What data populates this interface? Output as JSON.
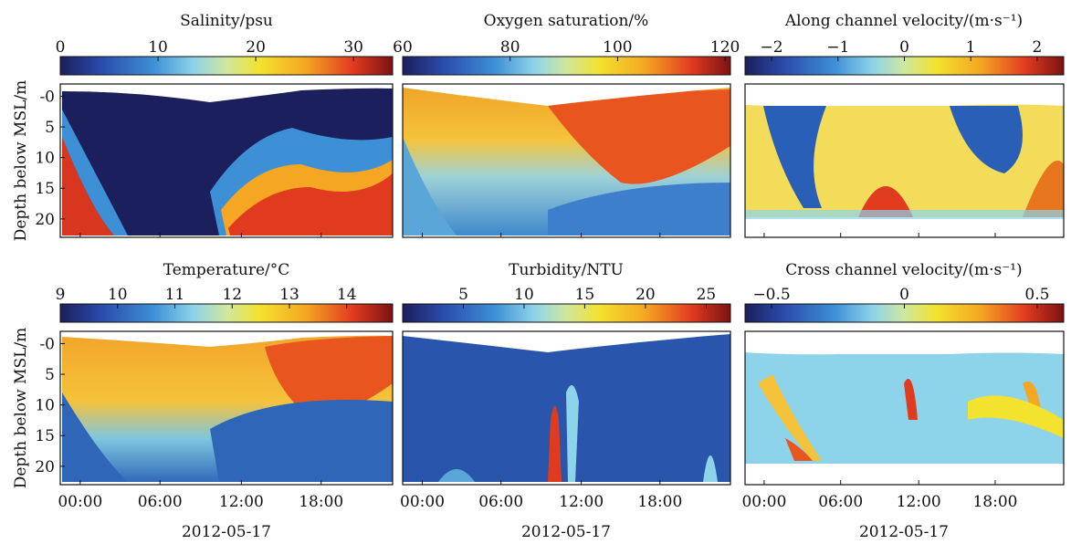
{
  "chart_data": [
    {
      "type": "heatmap",
      "title": "Salinity/psu",
      "ylabel": "Depth below MSL/m",
      "yticks": [
        "-0",
        "5",
        "10",
        "15",
        "20"
      ],
      "xticks": [
        "00:00",
        "06:00",
        "12:00",
        "18:00"
      ],
      "colorbar": {
        "ticks": [
          "0",
          "10",
          "20",
          "30"
        ],
        "tick_values": [
          0,
          10,
          20,
          30
        ],
        "range": [
          0,
          34
        ]
      }
    },
    {
      "type": "heatmap",
      "title": "Oxygen saturation/%",
      "xticks": [
        "00:00",
        "06:00",
        "12:00",
        "18:00"
      ],
      "colorbar": {
        "ticks": [
          "60",
          "80",
          "100",
          "120"
        ],
        "tick_values": [
          60,
          80,
          100,
          120
        ],
        "range": [
          60,
          121
        ]
      }
    },
    {
      "type": "heatmap",
      "title": "Along channel velocity/(m·s⁻¹)",
      "xticks": [
        "00:00",
        "06:00",
        "12:00",
        "18:00"
      ],
      "colorbar": {
        "ticks": [
          "−2",
          "−1",
          "0",
          "1",
          "2"
        ],
        "tick_values": [
          -2,
          -1,
          0,
          1,
          2
        ],
        "range": [
          -2.4,
          2.4
        ]
      }
    },
    {
      "type": "heatmap",
      "title": "Temperature/°C",
      "ylabel": "Depth below MSL/m",
      "yticks": [
        "-0",
        "5",
        "10",
        "15",
        "20"
      ],
      "xticks": [
        "00:00",
        "06:00",
        "12:00",
        "18:00"
      ],
      "xlabel": "2012-05-17",
      "colorbar": {
        "ticks": [
          "9",
          "10",
          "11",
          "12",
          "13",
          "14"
        ],
        "tick_values": [
          9,
          10,
          11,
          12,
          13,
          14
        ],
        "range": [
          9,
          14.8
        ]
      }
    },
    {
      "type": "heatmap",
      "title": "Turbidity/NTU",
      "xticks": [
        "00:00",
        "06:00",
        "12:00",
        "18:00"
      ],
      "xlabel": "2012-05-17",
      "colorbar": {
        "ticks": [
          "5",
          "10",
          "15",
          "20",
          "25"
        ],
        "tick_values": [
          5,
          10,
          15,
          20,
          25
        ],
        "range": [
          0,
          27
        ]
      }
    },
    {
      "type": "heatmap",
      "title": "Cross channel velocity/(m·s⁻¹)",
      "xticks": [
        "00:00",
        "06:00",
        "12:00",
        "18:00"
      ],
      "xlabel": "2012-05-17",
      "colorbar": {
        "ticks": [
          "−0.5",
          "0",
          "0.5"
        ],
        "tick_values": [
          -0.5,
          0,
          0.5
        ],
        "range": [
          -0.6,
          0.6
        ]
      }
    }
  ]
}
